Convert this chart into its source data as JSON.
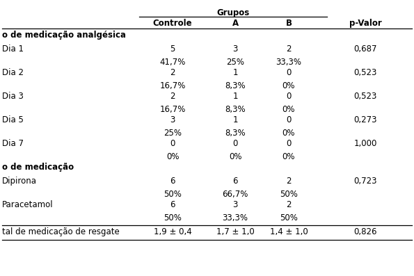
{
  "grupos_header": "Grupos",
  "col_headers": [
    "Controle",
    "A",
    "B",
    "p-Valor"
  ],
  "section1_header": "o de medicação analgésica",
  "section2_header": "o de medicação",
  "rows": [
    {
      "label": "o de medicação analgésica",
      "vals": [
        "",
        "",
        ""
      ],
      "pval": "",
      "bold": true,
      "section_header": true
    },
    {
      "label": "Dia 1",
      "vals": [
        "5",
        "3",
        "2"
      ],
      "pval": "0,687",
      "bold": false
    },
    {
      "label": "",
      "vals": [
        "41,7%",
        "25%",
        "33,3%"
      ],
      "pval": "",
      "bold": false
    },
    {
      "label": "Dia 2",
      "vals": [
        "2",
        "1",
        "0"
      ],
      "pval": "0,523",
      "bold": false
    },
    {
      "label": "",
      "vals": [
        "16,7%",
        "8,3%",
        "0%"
      ],
      "pval": "",
      "bold": false
    },
    {
      "label": "Dia 3",
      "vals": [
        "2",
        "1",
        "0"
      ],
      "pval": "0,523",
      "bold": false
    },
    {
      "label": "",
      "vals": [
        "16,7%",
        "8,3%",
        "0%"
      ],
      "pval": "",
      "bold": false
    },
    {
      "label": "Dia 5",
      "vals": [
        "3",
        "1",
        "0"
      ],
      "pval": "0,273",
      "bold": false
    },
    {
      "label": "",
      "vals": [
        "25%",
        "8,3%",
        "0%"
      ],
      "pval": "",
      "bold": false
    },
    {
      "label": "Dia 7",
      "vals": [
        "0",
        "0",
        "0"
      ],
      "pval": "1,000",
      "bold": false
    },
    {
      "label": "",
      "vals": [
        "0%",
        "0%",
        "0%"
      ],
      "pval": "",
      "bold": false
    },
    {
      "label": "o de medicação",
      "vals": [
        "",
        "",
        ""
      ],
      "pval": "",
      "bold": true,
      "section_header": true
    },
    {
      "label": "Dipirona",
      "vals": [
        "6",
        "6",
        "2"
      ],
      "pval": "0,723",
      "bold": false
    },
    {
      "label": "",
      "vals": [
        "50%",
        "66,7%",
        "50%"
      ],
      "pval": "",
      "bold": false
    },
    {
      "label": "Paracetamol",
      "vals": [
        "6",
        "3",
        "2"
      ],
      "pval": "",
      "bold": false
    },
    {
      "label": "",
      "vals": [
        "50%",
        "33,3%",
        "50%"
      ],
      "pval": "",
      "bold": false
    }
  ],
  "footer": {
    "label": "tal de medicação de resgate",
    "vals": [
      "1,9 ± 0,4",
      "1,7 ± 1,0",
      "1,4 ± 1,0"
    ],
    "pval": "0,826"
  },
  "font_size": 8.5,
  "bg_color": "#ffffff"
}
